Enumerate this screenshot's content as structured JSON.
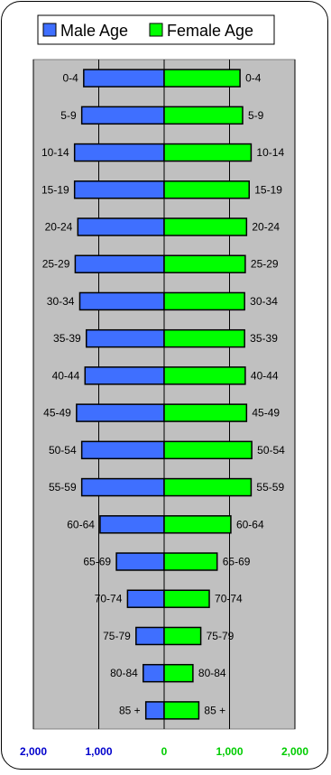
{
  "colors": {
    "male": "#3f6fff",
    "female": "#00ff00",
    "plot_bg": "#c0c0c0",
    "gridline": "#000000",
    "male_tick": "#0000cc",
    "female_tick": "#00cc00",
    "frame": "#000000"
  },
  "legend": {
    "male_label": "Male Age",
    "female_label": "Female Age"
  },
  "chart_data": {
    "type": "bar",
    "orientation": "horizontal",
    "subtype": "population-pyramid",
    "categories": [
      "0-4",
      "5-9",
      "10-14",
      "15-19",
      "20-24",
      "25-29",
      "30-34",
      "35-39",
      "40-44",
      "45-49",
      "50-54",
      "55-59",
      "60-64",
      "65-69",
      "70-74",
      "75-79",
      "80-84",
      "85 +"
    ],
    "series": [
      {
        "name": "Male Age",
        "values": [
          1230,
          1260,
          1370,
          1370,
          1320,
          1360,
          1290,
          1190,
          1210,
          1340,
          1260,
          1260,
          980,
          730,
          560,
          430,
          320,
          280
        ]
      },
      {
        "name": "Female Age",
        "values": [
          1160,
          1200,
          1330,
          1300,
          1260,
          1240,
          1230,
          1230,
          1240,
          1260,
          1340,
          1330,
          1020,
          810,
          690,
          560,
          440,
          530
        ]
      }
    ],
    "xlim": [
      -2000,
      2000
    ],
    "xticks": [
      {
        "value": -2000,
        "label": "2,000"
      },
      {
        "value": -1000,
        "label": "1,000"
      },
      {
        "value": 0,
        "label": "0"
      },
      {
        "value": 1000,
        "label": "1,000"
      },
      {
        "value": 2000,
        "label": "2,000"
      }
    ],
    "grid": "vertical",
    "legend_position": "top"
  }
}
